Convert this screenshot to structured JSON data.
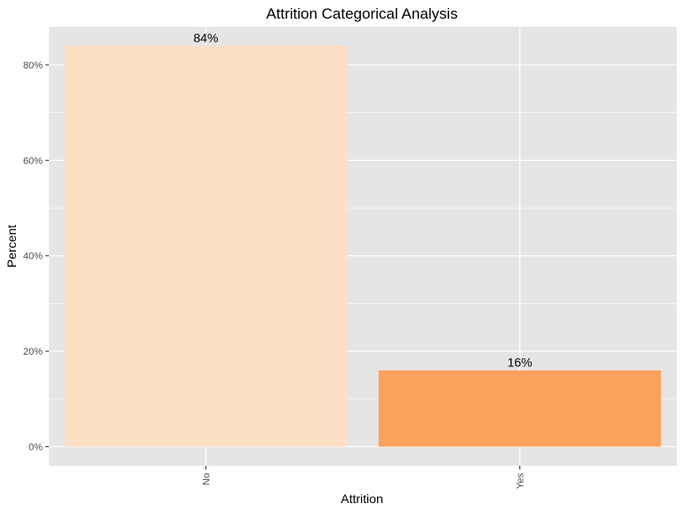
{
  "chart_data": {
    "type": "bar",
    "title": "Attrition Categorical Analysis",
    "xlabel": "Attrition",
    "ylabel": "Percent",
    "categories": [
      "No",
      "Yes"
    ],
    "values": [
      0.84,
      0.16
    ],
    "data_labels": [
      "84%",
      "16%"
    ],
    "bar_colors": [
      "#fddfc4",
      "#fca15c"
    ],
    "ylim": [
      -0.04,
      0.88
    ],
    "yticks": [
      0,
      0.2,
      0.4,
      0.6,
      0.8
    ],
    "ytick_labels": [
      "0%",
      "20%",
      "40%",
      "60%",
      "80%"
    ],
    "grid": true,
    "panel_background": "#e5e5e5",
    "grid_color": "#ffffff"
  }
}
